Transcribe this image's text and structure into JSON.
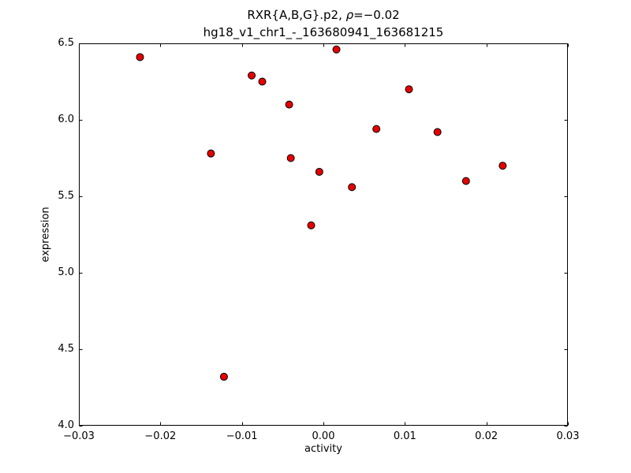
{
  "chart_data": {
    "type": "scatter",
    "title": {
      "prefix": "RXR{A,B,G}.p2, ",
      "rho": "ρ",
      "suffix": "=−0.02"
    },
    "subtitle": "hg18_v1_chr1_-_163680941_163681215",
    "xlabel": "activity",
    "ylabel": "expression",
    "xlim": [
      -0.03,
      0.03
    ],
    "ylim": [
      4.0,
      6.5
    ],
    "grid": false,
    "x_ticks": {
      "values": [
        -0.03,
        -0.02,
        -0.01,
        0.0,
        0.01,
        0.02,
        0.03
      ],
      "labels": [
        "−0.03",
        "−0.02",
        "−0.01",
        "0.00",
        "0.01",
        "0.02",
        "0.03"
      ]
    },
    "y_ticks": {
      "values": [
        4.0,
        4.5,
        5.0,
        5.5,
        6.0,
        6.5
      ],
      "labels": [
        "4.0",
        "4.5",
        "5.0",
        "5.5",
        "6.0",
        "6.5"
      ]
    },
    "marker": {
      "shape": "circle",
      "fill_color": "#e60000",
      "edge_color": "#000000",
      "radius_px": 4.5
    },
    "points": [
      {
        "x": -0.0225,
        "y": 6.41
      },
      {
        "x": -0.0138,
        "y": 5.78
      },
      {
        "x": -0.0122,
        "y": 4.32
      },
      {
        "x": -0.0088,
        "y": 6.29
      },
      {
        "x": -0.0075,
        "y": 6.25
      },
      {
        "x": -0.0042,
        "y": 6.1
      },
      {
        "x": -0.004,
        "y": 5.75
      },
      {
        "x": -0.0015,
        "y": 5.31
      },
      {
        "x": -0.0005,
        "y": 5.66
      },
      {
        "x": 0.0016,
        "y": 6.46
      },
      {
        "x": 0.0035,
        "y": 5.56
      },
      {
        "x": 0.0065,
        "y": 5.94
      },
      {
        "x": 0.0105,
        "y": 6.2
      },
      {
        "x": 0.014,
        "y": 5.92
      },
      {
        "x": 0.0175,
        "y": 5.6
      },
      {
        "x": 0.022,
        "y": 5.7
      }
    ]
  }
}
